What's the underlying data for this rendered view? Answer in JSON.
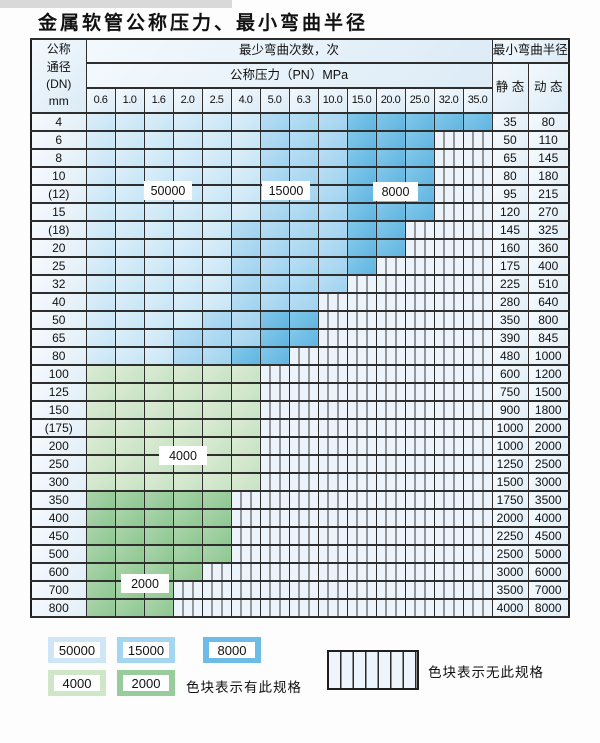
{
  "page_title": "金属软管公称压力、最小弯曲半径",
  "chart_data": {
    "type": "table",
    "title": "金属软管公称压力、最小弯曲半径",
    "bend_cycles_header": "最少弯曲次数，次",
    "pressure_header": "公称压力（PN）MPa",
    "radius_header": "最小弯曲半径",
    "pressure_columns_mpa": [
      "0.6",
      "1.0",
      "1.6",
      "2.0",
      "2.5",
      "4.0",
      "5.0",
      "6.3",
      "10.0",
      "15.0",
      "20.0",
      "25.0",
      "32.0",
      "35.0"
    ],
    "zone_codes": {
      "A": "50000",
      "B": "15000",
      "C": "8000",
      "D": "4000",
      "E": "2000",
      "X": "无此规格"
    },
    "rows": [
      {
        "dn": "4",
        "static": "35",
        "dynamic": "80",
        "pn_zones": "AAAAAABBBCCCCC"
      },
      {
        "dn": "6",
        "static": "50",
        "dynamic": "110",
        "pn_zones": "AAAAAABBBCCCXX"
      },
      {
        "dn": "8",
        "static": "65",
        "dynamic": "145",
        "pn_zones": "AAAAAABBBCCCXX"
      },
      {
        "dn": "10",
        "static": "80",
        "dynamic": "180",
        "pn_zones": "AAAAAABBBCCCXX"
      },
      {
        "dn": "(12)",
        "static": "95",
        "dynamic": "215",
        "pn_zones": "AAAAAABBBCCCXX"
      },
      {
        "dn": "15",
        "static": "120",
        "dynamic": "270",
        "pn_zones": "AAAAAABBBCCCXX"
      },
      {
        "dn": "(18)",
        "static": "145",
        "dynamic": "325",
        "pn_zones": "AAAAABBBBCCXXX"
      },
      {
        "dn": "20",
        "static": "160",
        "dynamic": "360",
        "pn_zones": "AAAAABBBBCCXXX"
      },
      {
        "dn": "25",
        "static": "175",
        "dynamic": "400",
        "pn_zones": "AAAAABBBBCXXXX"
      },
      {
        "dn": "32",
        "static": "225",
        "dynamic": "510",
        "pn_zones": "AAAAABBBBXXXXX"
      },
      {
        "dn": "40",
        "static": "280",
        "dynamic": "640",
        "pn_zones": "AAAAABBBXXXXXX"
      },
      {
        "dn": "50",
        "static": "350",
        "dynamic": "800",
        "pn_zones": "AAAABBCCXXXXXX"
      },
      {
        "dn": "65",
        "static": "390",
        "dynamic": "845",
        "pn_zones": "AAABBBCCXXXXXX"
      },
      {
        "dn": "80",
        "static": "480",
        "dynamic": "1000",
        "pn_zones": "AAABBCCXXXXXXX"
      },
      {
        "dn": "100",
        "static": "600",
        "dynamic": "1200",
        "pn_zones": "DDDDDDXXXXXXXX"
      },
      {
        "dn": "125",
        "static": "750",
        "dynamic": "1500",
        "pn_zones": "DDDDDDXXXXXXXX"
      },
      {
        "dn": "150",
        "static": "900",
        "dynamic": "1800",
        "pn_zones": "DDDDDDXXXXXXXX"
      },
      {
        "dn": "(175)",
        "static": "1000",
        "dynamic": "2000",
        "pn_zones": "DDDDDDXXXXXXXX"
      },
      {
        "dn": "200",
        "static": "1000",
        "dynamic": "2000",
        "pn_zones": "DDDDDDXXXXXXXX"
      },
      {
        "dn": "250",
        "static": "1250",
        "dynamic": "2500",
        "pn_zones": "DDDDDDXXXXXXXX"
      },
      {
        "dn": "300",
        "static": "1500",
        "dynamic": "3000",
        "pn_zones": "DDDDDDXXXXXXXX"
      },
      {
        "dn": "350",
        "static": "1750",
        "dynamic": "3500",
        "pn_zones": "EEEEEXXXXXXXXX"
      },
      {
        "dn": "400",
        "static": "2000",
        "dynamic": "4000",
        "pn_zones": "EEEEEXXXXXXXXX"
      },
      {
        "dn": "450",
        "static": "2250",
        "dynamic": "4500",
        "pn_zones": "EEEEEXXXXXXXXX"
      },
      {
        "dn": "500",
        "static": "2500",
        "dynamic": "5000",
        "pn_zones": "EEEEEXXXXXXXXX"
      },
      {
        "dn": "600",
        "static": "3000",
        "dynamic": "6000",
        "pn_zones": "EEEEXXXXXXXXXX"
      },
      {
        "dn": "700",
        "static": "3500",
        "dynamic": "7000",
        "pn_zones": "EEEXXXXXXXXXXX"
      },
      {
        "dn": "800",
        "static": "4000",
        "dynamic": "8000",
        "pn_zones": "EEEXXXXXXXXXXX"
      }
    ]
  },
  "table": {
    "header": {
      "dn_label_lines": [
        "公称",
        "通径",
        "(DN)",
        "mm"
      ],
      "bend_cycles_label": "最少弯曲次数，次",
      "pressure_label": "公称压力（PN）MPa",
      "radius_label": "最小弯曲半径",
      "static_label": "静 态",
      "dynamic_label": "动 态"
    }
  },
  "overlays": {
    "o50000": "50000",
    "o15000": "15000",
    "o8000": "8000",
    "o4000": "4000",
    "o2000": "2000"
  },
  "legend": {
    "items": [
      {
        "code": "A",
        "label": "50000"
      },
      {
        "code": "B",
        "label": "15000"
      },
      {
        "code": "C",
        "label": "8000"
      },
      {
        "code": "D",
        "label": "4000"
      },
      {
        "code": "E",
        "label": "2000"
      }
    ],
    "has_spec_label": "色块表示有此规格",
    "no_spec_label": "色块表示无此规格"
  },
  "colors": {
    "zone_50000": "#cfe6f7",
    "zone_15000": "#a5d6f0",
    "zone_8000": "#6cbce6",
    "zone_4000": "#cfe6c9",
    "zone_2000": "#98cc9b",
    "hatch_background": "#ecf3fa",
    "grid_line": "#2e2e2e"
  }
}
